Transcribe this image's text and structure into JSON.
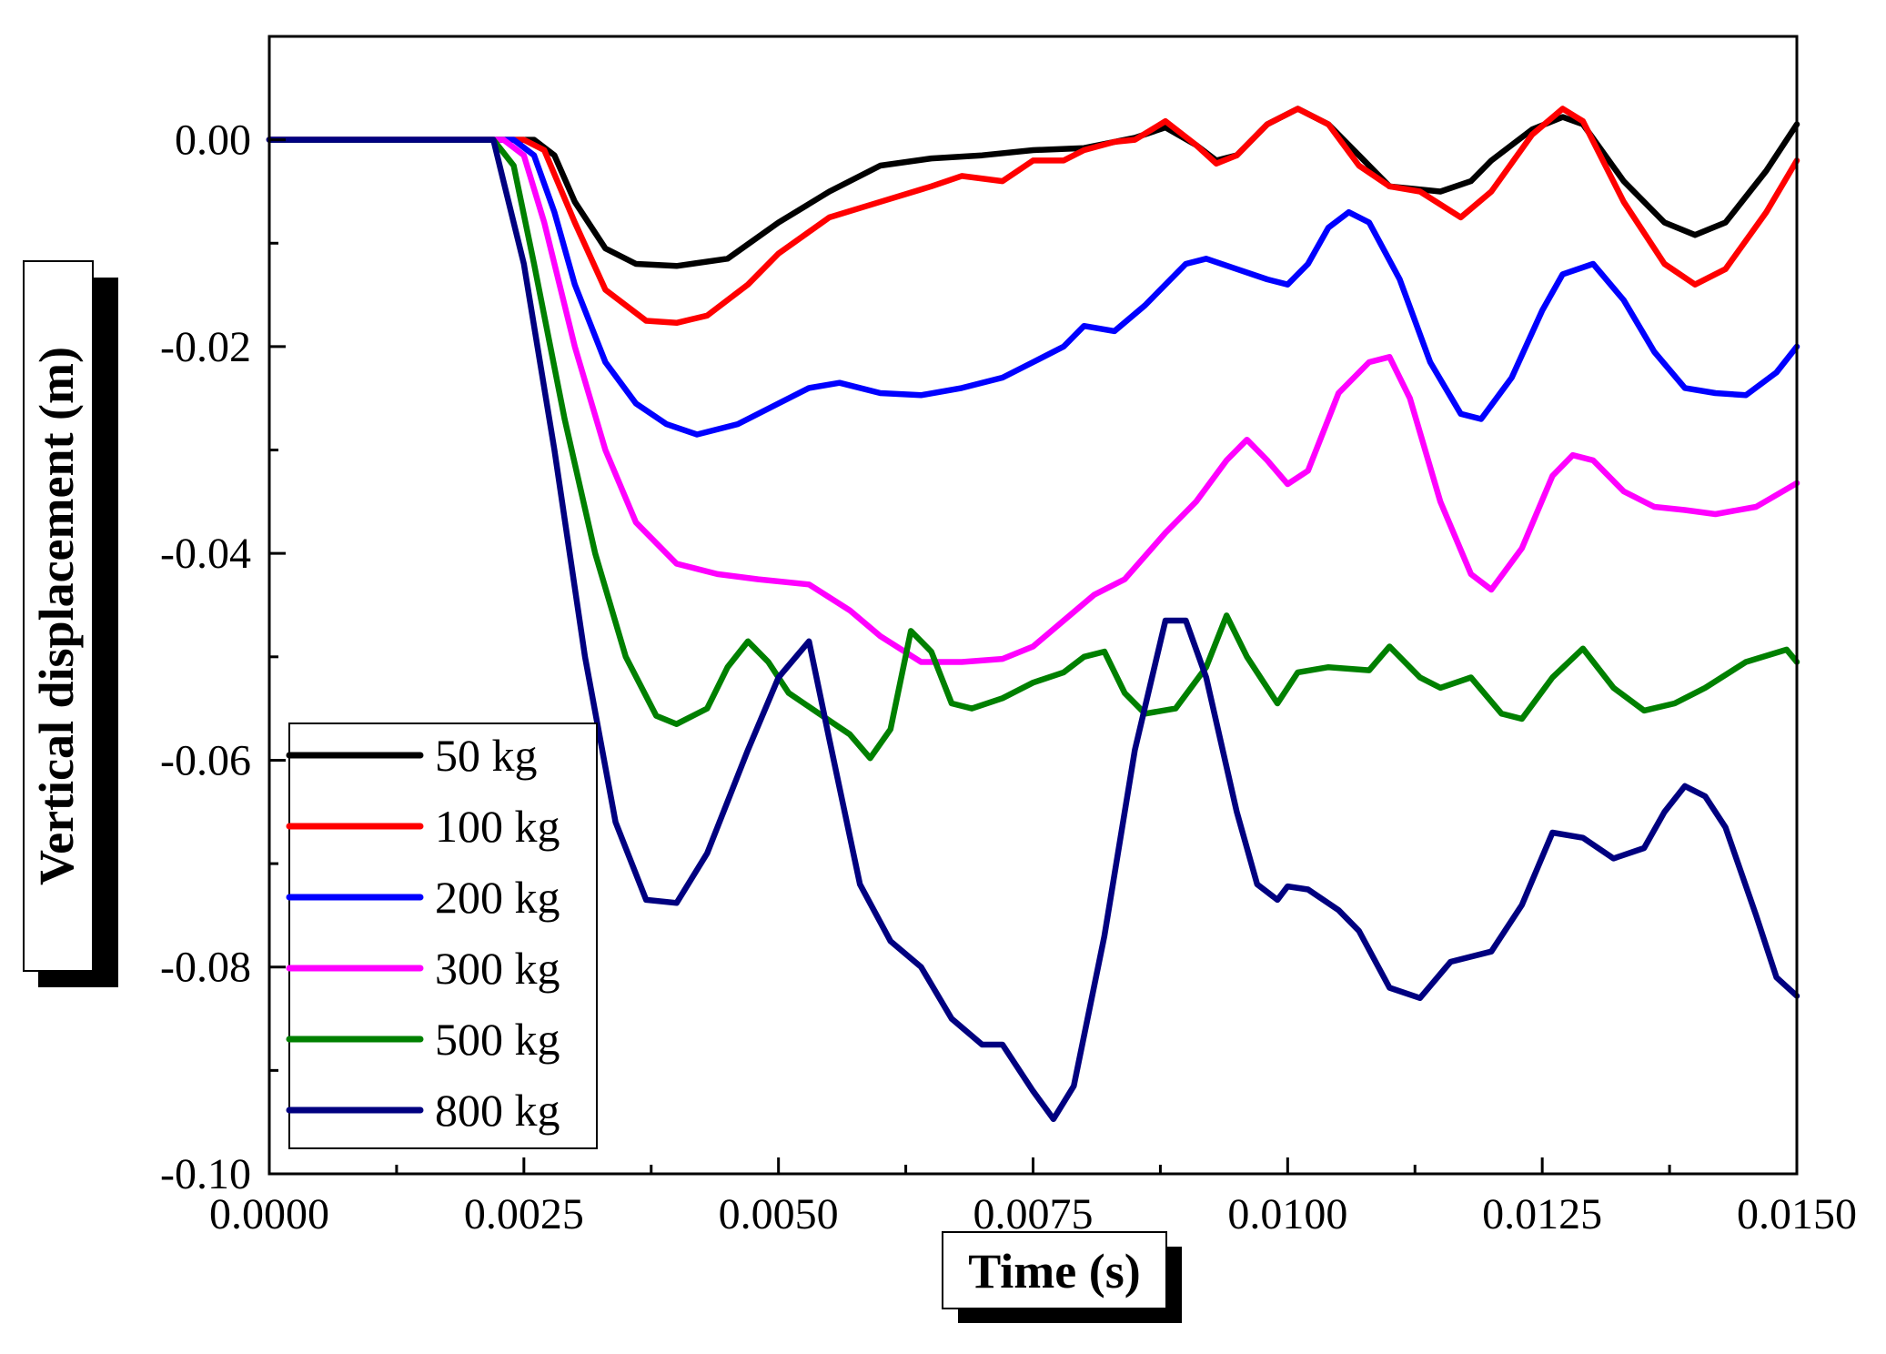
{
  "chart_data": {
    "type": "line",
    "xlabel": "Time (s)",
    "ylabel": "Vertical displacement (m)",
    "xlim": [
      0.0,
      0.015
    ],
    "ylim": [
      -0.1,
      0.01
    ],
    "x_ticks": [
      "0.0000",
      "0.0025",
      "0.0050",
      "0.0075",
      "0.0100",
      "0.0125",
      "0.0150"
    ],
    "y_ticks": [
      "0.00",
      "-0.02",
      "-0.04",
      "-0.06",
      "-0.08",
      "-0.10"
    ],
    "legend_position": "bottom-left",
    "series": [
      {
        "name": "50 kg",
        "color": "#000000",
        "points": [
          [
            0,
            0
          ],
          [
            0.0026,
            0
          ],
          [
            0.0028,
            -0.0015
          ],
          [
            0.003,
            -0.006
          ],
          [
            0.0033,
            -0.0105
          ],
          [
            0.0036,
            -0.012
          ],
          [
            0.004,
            -0.0122
          ],
          [
            0.0045,
            -0.0115
          ],
          [
            0.005,
            -0.008
          ],
          [
            0.0055,
            -0.005
          ],
          [
            0.006,
            -0.0025
          ],
          [
            0.0065,
            -0.0018
          ],
          [
            0.007,
            -0.0015
          ],
          [
            0.0075,
            -0.001
          ],
          [
            0.008,
            -0.0008
          ],
          [
            0.0085,
            0.0002
          ],
          [
            0.0088,
            0.0012
          ],
          [
            0.0091,
            -0.0005
          ],
          [
            0.0093,
            -0.002
          ],
          [
            0.0095,
            -0.0015
          ],
          [
            0.0098,
            0.0015
          ],
          [
            0.0101,
            0.003
          ],
          [
            0.0104,
            0.0015
          ],
          [
            0.0107,
            -0.0015
          ],
          [
            0.011,
            -0.0045
          ],
          [
            0.0115,
            -0.005
          ],
          [
            0.0118,
            -0.004
          ],
          [
            0.012,
            -0.002
          ],
          [
            0.0124,
            0.001
          ],
          [
            0.0127,
            0.0022
          ],
          [
            0.0129,
            0.0015
          ],
          [
            0.0133,
            -0.004
          ],
          [
            0.0137,
            -0.008
          ],
          [
            0.014,
            -0.0092
          ],
          [
            0.0143,
            -0.008
          ],
          [
            0.0147,
            -0.003
          ],
          [
            0.015,
            0.0015
          ]
        ]
      },
      {
        "name": "100 kg",
        "color": "#ff0000",
        "points": [
          [
            0,
            0
          ],
          [
            0.0025,
            0
          ],
          [
            0.0027,
            -0.001
          ],
          [
            0.003,
            -0.008
          ],
          [
            0.0033,
            -0.0145
          ],
          [
            0.0037,
            -0.0175
          ],
          [
            0.004,
            -0.0177
          ],
          [
            0.0043,
            -0.017
          ],
          [
            0.0047,
            -0.014
          ],
          [
            0.005,
            -0.011
          ],
          [
            0.0055,
            -0.0075
          ],
          [
            0.006,
            -0.006
          ],
          [
            0.0065,
            -0.0045
          ],
          [
            0.0068,
            -0.0035
          ],
          [
            0.0072,
            -0.004
          ],
          [
            0.0075,
            -0.002
          ],
          [
            0.0078,
            -0.002
          ],
          [
            0.008,
            -0.001
          ],
          [
            0.0083,
            -0.0002
          ],
          [
            0.0085,
            0
          ],
          [
            0.0088,
            0.0018
          ],
          [
            0.0091,
            -0.0005
          ],
          [
            0.0093,
            -0.0023
          ],
          [
            0.0095,
            -0.0015
          ],
          [
            0.0098,
            0.0015
          ],
          [
            0.0101,
            0.003
          ],
          [
            0.0104,
            0.0015
          ],
          [
            0.0107,
            -0.0025
          ],
          [
            0.011,
            -0.0045
          ],
          [
            0.0113,
            -0.005
          ],
          [
            0.0117,
            -0.0075
          ],
          [
            0.012,
            -0.005
          ],
          [
            0.0124,
            0.0005
          ],
          [
            0.0127,
            0.003
          ],
          [
            0.0129,
            0.0018
          ],
          [
            0.0133,
            -0.006
          ],
          [
            0.0137,
            -0.012
          ],
          [
            0.014,
            -0.014
          ],
          [
            0.0143,
            -0.0125
          ],
          [
            0.0147,
            -0.007
          ],
          [
            0.015,
            -0.002
          ]
        ]
      },
      {
        "name": "200 kg",
        "color": "#0000ff",
        "points": [
          [
            0,
            0
          ],
          [
            0.0024,
            0
          ],
          [
            0.0026,
            -0.0015
          ],
          [
            0.0028,
            -0.007
          ],
          [
            0.003,
            -0.014
          ],
          [
            0.0033,
            -0.0215
          ],
          [
            0.0036,
            -0.0255
          ],
          [
            0.0039,
            -0.0275
          ],
          [
            0.0042,
            -0.0285
          ],
          [
            0.0046,
            -0.0275
          ],
          [
            0.005,
            -0.0255
          ],
          [
            0.0053,
            -0.024
          ],
          [
            0.0056,
            -0.0235
          ],
          [
            0.006,
            -0.0245
          ],
          [
            0.0064,
            -0.0247
          ],
          [
            0.0068,
            -0.024
          ],
          [
            0.0072,
            -0.023
          ],
          [
            0.0075,
            -0.0215
          ],
          [
            0.0078,
            -0.02
          ],
          [
            0.008,
            -0.018
          ],
          [
            0.0083,
            -0.0185
          ],
          [
            0.0086,
            -0.016
          ],
          [
            0.009,
            -0.012
          ],
          [
            0.0092,
            -0.0115
          ],
          [
            0.0095,
            -0.0125
          ],
          [
            0.0098,
            -0.0135
          ],
          [
            0.01,
            -0.014
          ],
          [
            0.0102,
            -0.012
          ],
          [
            0.0104,
            -0.0085
          ],
          [
            0.0106,
            -0.007
          ],
          [
            0.0108,
            -0.008
          ],
          [
            0.0111,
            -0.0135
          ],
          [
            0.0114,
            -0.0215
          ],
          [
            0.0117,
            -0.0265
          ],
          [
            0.0119,
            -0.027
          ],
          [
            0.0122,
            -0.023
          ],
          [
            0.0125,
            -0.0165
          ],
          [
            0.0127,
            -0.013
          ],
          [
            0.013,
            -0.012
          ],
          [
            0.0133,
            -0.0155
          ],
          [
            0.0136,
            -0.0205
          ],
          [
            0.0139,
            -0.024
          ],
          [
            0.0142,
            -0.0245
          ],
          [
            0.0145,
            -0.0247
          ],
          [
            0.0148,
            -0.0225
          ],
          [
            0.015,
            -0.02
          ]
        ]
      },
      {
        "name": "300 kg",
        "color": "#ff00ff",
        "points": [
          [
            0,
            0
          ],
          [
            0.0023,
            0
          ],
          [
            0.0025,
            -0.0015
          ],
          [
            0.0027,
            -0.008
          ],
          [
            0.003,
            -0.02
          ],
          [
            0.0033,
            -0.03
          ],
          [
            0.0036,
            -0.037
          ],
          [
            0.004,
            -0.041
          ],
          [
            0.0044,
            -0.042
          ],
          [
            0.0048,
            -0.0425
          ],
          [
            0.0053,
            -0.043
          ],
          [
            0.0057,
            -0.0455
          ],
          [
            0.006,
            -0.048
          ],
          [
            0.0064,
            -0.0505
          ],
          [
            0.0068,
            -0.0505
          ],
          [
            0.0072,
            -0.0502
          ],
          [
            0.0075,
            -0.049
          ],
          [
            0.0078,
            -0.0465
          ],
          [
            0.0081,
            -0.044
          ],
          [
            0.0084,
            -0.0425
          ],
          [
            0.0088,
            -0.038
          ],
          [
            0.0091,
            -0.035
          ],
          [
            0.0094,
            -0.031
          ],
          [
            0.0096,
            -0.029
          ],
          [
            0.0098,
            -0.031
          ],
          [
            0.01,
            -0.0333
          ],
          [
            0.0102,
            -0.032
          ],
          [
            0.0105,
            -0.0245
          ],
          [
            0.0108,
            -0.0215
          ],
          [
            0.011,
            -0.021
          ],
          [
            0.0112,
            -0.025
          ],
          [
            0.0115,
            -0.035
          ],
          [
            0.0118,
            -0.042
          ],
          [
            0.012,
            -0.0435
          ],
          [
            0.0123,
            -0.0395
          ],
          [
            0.0126,
            -0.0325
          ],
          [
            0.0128,
            -0.0305
          ],
          [
            0.013,
            -0.031
          ],
          [
            0.0133,
            -0.034
          ],
          [
            0.0136,
            -0.0355
          ],
          [
            0.0139,
            -0.0358
          ],
          [
            0.0142,
            -0.0362
          ],
          [
            0.0146,
            -0.0355
          ],
          [
            0.015,
            -0.0332
          ]
        ]
      },
      {
        "name": "500 kg",
        "color": "#008000",
        "points": [
          [
            0,
            0
          ],
          [
            0.0022,
            0
          ],
          [
            0.0024,
            -0.0025
          ],
          [
            0.0026,
            -0.012
          ],
          [
            0.0029,
            -0.027
          ],
          [
            0.0032,
            -0.04
          ],
          [
            0.0035,
            -0.05
          ],
          [
            0.0038,
            -0.0557
          ],
          [
            0.004,
            -0.0565
          ],
          [
            0.0043,
            -0.055
          ],
          [
            0.0045,
            -0.051
          ],
          [
            0.0047,
            -0.0485
          ],
          [
            0.0049,
            -0.0505
          ],
          [
            0.0051,
            -0.0535
          ],
          [
            0.0054,
            -0.0555
          ],
          [
            0.0057,
            -0.0575
          ],
          [
            0.0059,
            -0.0598
          ],
          [
            0.0061,
            -0.057
          ],
          [
            0.0063,
            -0.0475
          ],
          [
            0.0065,
            -0.0495
          ],
          [
            0.0067,
            -0.0545
          ],
          [
            0.0069,
            -0.055
          ],
          [
            0.0072,
            -0.054
          ],
          [
            0.0075,
            -0.0525
          ],
          [
            0.0078,
            -0.0515
          ],
          [
            0.008,
            -0.05
          ],
          [
            0.0082,
            -0.0495
          ],
          [
            0.0084,
            -0.0535
          ],
          [
            0.0086,
            -0.0555
          ],
          [
            0.0089,
            -0.055
          ],
          [
            0.0092,
            -0.051
          ],
          [
            0.0094,
            -0.046
          ],
          [
            0.0096,
            -0.05
          ],
          [
            0.0099,
            -0.0545
          ],
          [
            0.0101,
            -0.0515
          ],
          [
            0.0104,
            -0.051
          ],
          [
            0.0108,
            -0.0513
          ],
          [
            0.011,
            -0.049
          ],
          [
            0.0113,
            -0.052
          ],
          [
            0.0115,
            -0.053
          ],
          [
            0.0118,
            -0.052
          ],
          [
            0.0121,
            -0.0555
          ],
          [
            0.0123,
            -0.056
          ],
          [
            0.0126,
            -0.052
          ],
          [
            0.0129,
            -0.0492
          ],
          [
            0.0132,
            -0.053
          ],
          [
            0.0135,
            -0.0552
          ],
          [
            0.0138,
            -0.0545
          ],
          [
            0.0141,
            -0.053
          ],
          [
            0.0145,
            -0.0505
          ],
          [
            0.0149,
            -0.0493
          ],
          [
            0.015,
            -0.0505
          ]
        ]
      },
      {
        "name": "800 kg",
        "color": "#000080",
        "points": [
          [
            0,
            0
          ],
          [
            0.0022,
            0
          ],
          [
            0.0023,
            -0.004
          ],
          [
            0.0025,
            -0.012
          ],
          [
            0.0028,
            -0.03
          ],
          [
            0.0031,
            -0.05
          ],
          [
            0.0034,
            -0.066
          ],
          [
            0.0037,
            -0.0735
          ],
          [
            0.004,
            -0.0738
          ],
          [
            0.0043,
            -0.069
          ],
          [
            0.0047,
            -0.059
          ],
          [
            0.005,
            -0.052
          ],
          [
            0.0053,
            -0.0485
          ],
          [
            0.0055,
            -0.058
          ],
          [
            0.0058,
            -0.072
          ],
          [
            0.0061,
            -0.0775
          ],
          [
            0.0064,
            -0.08
          ],
          [
            0.0067,
            -0.085
          ],
          [
            0.007,
            -0.0875
          ],
          [
            0.0072,
            -0.0875
          ],
          [
            0.0075,
            -0.092
          ],
          [
            0.0077,
            -0.0947
          ],
          [
            0.0079,
            -0.0915
          ],
          [
            0.0082,
            -0.077
          ],
          [
            0.0085,
            -0.059
          ],
          [
            0.0088,
            -0.0465
          ],
          [
            0.009,
            -0.0465
          ],
          [
            0.0092,
            -0.052
          ],
          [
            0.0095,
            -0.065
          ],
          [
            0.0097,
            -0.072
          ],
          [
            0.0099,
            -0.0735
          ],
          [
            0.01,
            -0.0722
          ],
          [
            0.0102,
            -0.0725
          ],
          [
            0.0105,
            -0.0745
          ],
          [
            0.0107,
            -0.0765
          ],
          [
            0.011,
            -0.082
          ],
          [
            0.0113,
            -0.083
          ],
          [
            0.0116,
            -0.0795
          ],
          [
            0.012,
            -0.0785
          ],
          [
            0.0123,
            -0.074
          ],
          [
            0.0126,
            -0.067
          ],
          [
            0.0129,
            -0.0675
          ],
          [
            0.0132,
            -0.0695
          ],
          [
            0.0135,
            -0.0685
          ],
          [
            0.0137,
            -0.065
          ],
          [
            0.0139,
            -0.0625
          ],
          [
            0.0141,
            -0.0635
          ],
          [
            0.0143,
            -0.0665
          ],
          [
            0.0146,
            -0.075
          ],
          [
            0.0148,
            -0.081
          ],
          [
            0.015,
            -0.0828
          ]
        ]
      }
    ]
  }
}
